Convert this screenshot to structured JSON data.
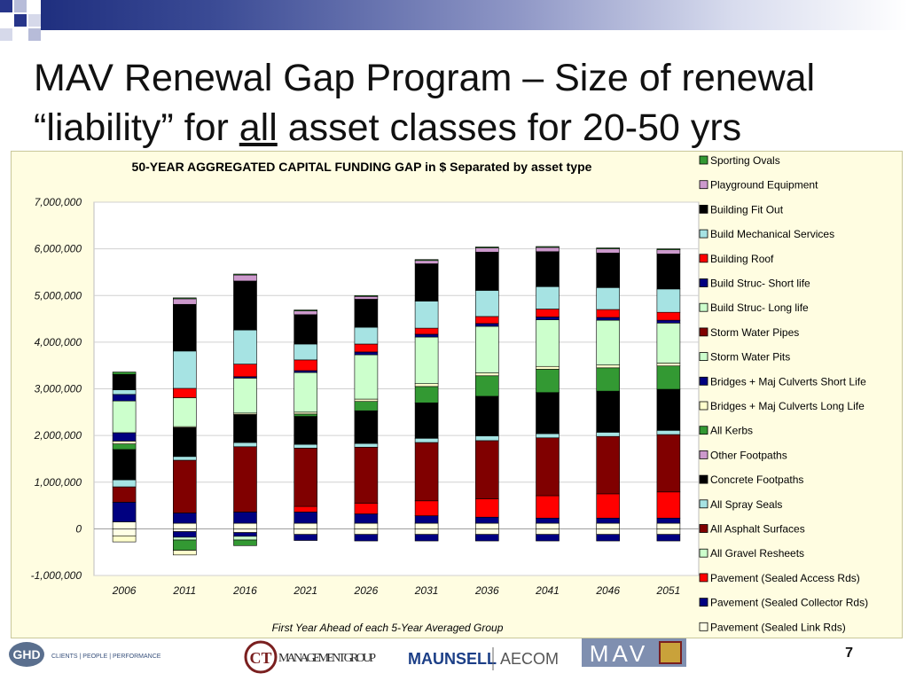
{
  "slide": {
    "title_part1": "MAV Renewal Gap Program – Size of renewal “liability” for ",
    "title_emph": "all",
    "title_part2": " asset classes for 20-50 yrs",
    "page_number": "7"
  },
  "footer": {
    "ghd_mark": "GHD",
    "ghd_tagline": "CLIENTS | PEOPLE | PERFORMANCE",
    "ct_mark": "CT",
    "ct_text": "MANAGEMENT GROUP",
    "maunsell": "MAUNSELL",
    "aecom": "AECOM",
    "mav": "MAV"
  },
  "colors": {
    "top_band_start": "#1f2f7f",
    "panel_bg": "#fffde1"
  },
  "chart_data": {
    "type": "bar",
    "stacked": true,
    "title": "50-YEAR AGGREGATED CAPITAL FUNDING GAP in $ Separated by asset type",
    "xlabel": "First Year Ahead of each 5-Year Averaged Group",
    "ylabel": "",
    "ylim": [
      -1000000,
      7000000
    ],
    "yticks": [
      {
        "value": 7000000,
        "label": "7,000,000"
      },
      {
        "value": 6000000,
        "label": "6,000,000"
      },
      {
        "value": 5000000,
        "label": "5,000,000"
      },
      {
        "value": 4000000,
        "label": "4,000,000"
      },
      {
        "value": 3000000,
        "label": "3,000,000"
      },
      {
        "value": 2000000,
        "label": "2,000,000"
      },
      {
        "value": 1000000,
        "label": "1,000,000"
      },
      {
        "value": 0,
        "label": "0"
      },
      {
        "value": -1000000,
        "label": "-1,000,000"
      }
    ],
    "grid": true,
    "legend_position": "right",
    "categories": [
      "2006",
      "2011",
      "2016",
      "2021",
      "2026",
      "2031",
      "2036",
      "2041",
      "2046",
      "2051"
    ],
    "series": [
      {
        "name": "Pavement (Sealed Link Rds)",
        "color": "#ffffe6",
        "values": [
          150000,
          120000,
          120000,
          120000,
          120000,
          120000,
          120000,
          120000,
          120000,
          120000
        ]
      },
      {
        "name": "Pavement (Sealed Collector Rds)",
        "color": "#000080",
        "values": [
          420000,
          220000,
          240000,
          240000,
          200000,
          160000,
          130000,
          110000,
          110000,
          110000
        ]
      },
      {
        "name": "Pavement (Sealed Access Rds)",
        "color": "#ff0000",
        "values": [
          0,
          0,
          0,
          120000,
          230000,
          320000,
          390000,
          480000,
          520000,
          560000
        ]
      },
      {
        "name": "All Gravel Resheets",
        "color": "#ccffcc",
        "values": [
          0,
          0,
          0,
          0,
          0,
          0,
          0,
          0,
          0,
          0
        ]
      },
      {
        "name": "All Asphalt Surfaces",
        "color": "#800000",
        "values": [
          330000,
          1130000,
          1400000,
          1250000,
          1200000,
          1250000,
          1250000,
          1240000,
          1230000,
          1230000
        ]
      },
      {
        "name": "All Spray Seals",
        "color": "#a6e3e3",
        "values": [
          150000,
          80000,
          90000,
          80000,
          80000,
          90000,
          100000,
          90000,
          90000,
          90000
        ]
      },
      {
        "name": "Concrete Footpaths",
        "color": "#000000",
        "values": [
          650000,
          620000,
          600000,
          600000,
          700000,
          760000,
          850000,
          880000,
          880000,
          880000
        ]
      },
      {
        "name": "Other Footpaths",
        "color": "#cc99cc",
        "values": [
          0,
          0,
          0,
          0,
          0,
          0,
          0,
          0,
          0,
          0
        ]
      },
      {
        "name": "All Kerbs",
        "color": "#339933",
        "values": [
          120000,
          0,
          0,
          50000,
          200000,
          350000,
          440000,
          500000,
          500000,
          500000
        ]
      },
      {
        "name": "Bridges + Maj Culverts Long Life",
        "color": "#ffffcc",
        "values": [
          60000,
          20000,
          30000,
          40000,
          50000,
          60000,
          60000,
          60000,
          60000,
          60000
        ]
      },
      {
        "name": "Bridges + Maj Culverts Short Life",
        "color": "#000080",
        "values": [
          180000,
          0,
          0,
          0,
          0,
          0,
          0,
          0,
          0,
          0
        ]
      },
      {
        "name": "Storm Water Pits",
        "color": "#ccffcc",
        "values": [
          0,
          0,
          0,
          0,
          0,
          0,
          0,
          0,
          0,
          0
        ]
      },
      {
        "name": "Storm Water Pipes",
        "color": "#800000",
        "values": [
          0,
          0,
          0,
          0,
          0,
          0,
          0,
          0,
          0,
          0
        ]
      },
      {
        "name": "Build Struc- Long life",
        "color": "#ccffcc",
        "values": [
          680000,
          620000,
          750000,
          850000,
          950000,
          1000000,
          1000000,
          1000000,
          960000,
          860000
        ]
      },
      {
        "name": "Build Struc- Short life",
        "color": "#000080",
        "values": [
          140000,
          0,
          30000,
          40000,
          60000,
          60000,
          60000,
          60000,
          60000,
          60000
        ]
      },
      {
        "name": "Building Roof",
        "color": "#ff0000",
        "values": [
          0,
          200000,
          270000,
          230000,
          170000,
          130000,
          150000,
          170000,
          170000,
          170000
        ]
      },
      {
        "name": "Build Mechanical Services",
        "color": "#a6e3e3",
        "values": [
          100000,
          800000,
          730000,
          340000,
          360000,
          580000,
          560000,
          480000,
          470000,
          500000
        ]
      },
      {
        "name": "Building Fit Out",
        "color": "#000000",
        "values": [
          330000,
          1000000,
          1050000,
          630000,
          600000,
          800000,
          820000,
          750000,
          740000,
          750000
        ]
      },
      {
        "name": "Playground Equipment",
        "color": "#cc99cc",
        "values": [
          0,
          120000,
          130000,
          80000,
          60000,
          70000,
          90000,
          90000,
          90000,
          90000
        ]
      },
      {
        "name": "Sporting Ovals",
        "color": "#339933",
        "values": [
          50000,
          20000,
          20000,
          20000,
          20000,
          20000,
          20000,
          20000,
          20000,
          20000
        ]
      }
    ],
    "negative_series": [
      {
        "name": "Pavement (Sealed Link Rds)",
        "color": "#ffffe6",
        "values": [
          -150000,
          -60000,
          -80000,
          -120000,
          -120000,
          -120000,
          -120000,
          -120000,
          -120000,
          -120000
        ]
      },
      {
        "name": "Pavement (Sealed Collector Rds)",
        "color": "#000080",
        "values": [
          0,
          -120000,
          -80000,
          -130000,
          -140000,
          -140000,
          -140000,
          -140000,
          -140000,
          -140000
        ]
      },
      {
        "name": "All Gravel Resheets",
        "color": "#ccffcc",
        "values": [
          0,
          -60000,
          -80000,
          0,
          0,
          0,
          0,
          0,
          0,
          0
        ]
      },
      {
        "name": "All Kerbs",
        "color": "#339933",
        "values": [
          0,
          -220000,
          -120000,
          0,
          0,
          0,
          0,
          0,
          0,
          0
        ]
      },
      {
        "name": "Bridges + Maj Culverts Long Life",
        "color": "#ffffcc",
        "values": [
          -130000,
          -100000,
          0,
          0,
          0,
          0,
          0,
          0,
          0,
          0
        ]
      }
    ],
    "legend_order": [
      "Sporting Ovals",
      "Playground Equipment",
      "Building Fit Out",
      "Build Mechanical Services",
      "Building Roof",
      "Build Struc- Short life",
      "Build Struc- Long life",
      "Storm Water Pipes",
      "Storm Water Pits",
      "Bridges + Maj Culverts Short Life",
      "Bridges + Maj Culverts Long Life",
      "All Kerbs",
      "Other Footpaths",
      "Concrete Footpaths",
      "All Spray Seals",
      "All Asphalt Surfaces",
      "All Gravel Resheets",
      "Pavement (Sealed Access Rds)",
      "Pavement (Sealed Collector Rds)",
      "Pavement (Sealed Link Rds)"
    ]
  }
}
